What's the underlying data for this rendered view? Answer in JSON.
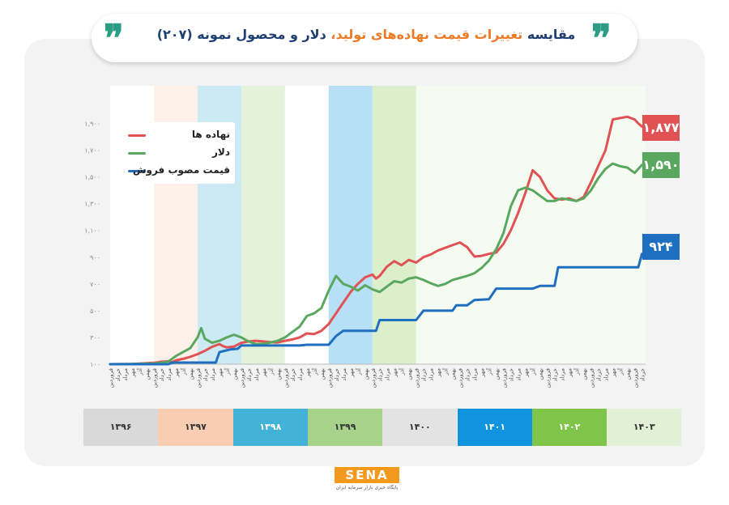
{
  "header": {
    "title_part1": "مقایسه ",
    "title_highlight": "تغییرات قیمت نهاده‌های تولید،",
    "title_part2": " دلار و محصول نمونه (۲۰۷)",
    "quote_glyph": "❞"
  },
  "colors": {
    "inputs": "#e05254",
    "dollar": "#5aa860",
    "price": "#1f6fc0",
    "title": "#1f3f73",
    "accent": "#ee7a26"
  },
  "legend": {
    "items": [
      {
        "label": "نهاده ها",
        "color": "#e05254"
      },
      {
        "label": "دلار",
        "color": "#5aa860"
      },
      {
        "label": "قیمت مصوب فروش",
        "color": "#1f6fc0"
      }
    ]
  },
  "badges": {
    "inputs": "۱,۸۷۷",
    "dollar": "۱,۵۹۰",
    "price": "۹۲۴"
  },
  "years": [
    {
      "label": "۱۳۹۶",
      "color": "#d9d9d9",
      "text": "#333"
    },
    {
      "label": "۱۳۹۷",
      "color": "#f8cdb2",
      "text": "#333"
    },
    {
      "label": "۱۳۹۸",
      "color": "#43b2d8",
      "text": "#fff"
    },
    {
      "label": "۱۳۹۹",
      "color": "#a6d389",
      "text": "#333"
    },
    {
      "label": "۱۴۰۰",
      "color": "#e3e3e3",
      "text": "#333"
    },
    {
      "label": "۱۴۰۱",
      "color": "#1194e0",
      "text": "#fff"
    },
    {
      "label": "۱۴۰۲",
      "color": "#7fc549",
      "text": "#fff"
    },
    {
      "label": "۱۴۰۳",
      "color": "#e2f1d5",
      "text": "#333"
    }
  ],
  "month_cycle": [
    "فروردین",
    "خرداد",
    "مرداد",
    "مهر",
    "آذر",
    "بهمن"
  ],
  "logo": {
    "name": "SENA",
    "subtitle": "پایگاه خبری بازار سرمایه ایران"
  },
  "chart_data": {
    "type": "line",
    "title": "مقایسه تغییرات قیمت نهاده‌های تولید، دلار و محصول نمونه (۲۰۷)",
    "x_unit": "ماه (۱۳۹۶ تا مرداد ۱۴۰۳)",
    "ylim": [
      100,
      2000
    ],
    "yticks": [
      100,
      300,
      500,
      700,
      900,
      1100,
      1300,
      1500,
      1700,
      1900
    ],
    "ytick_labels": [
      "۱۰۰",
      "۳۰۰",
      "۵۰۰",
      "۷۰۰",
      "۹۰۰",
      "۱,۱۰۰",
      "۱,۳۰۰",
      "۱,۵۰۰",
      "۱,۷۰۰",
      "۱,۹۰۰"
    ],
    "series": [
      {
        "name": "نهاده ها",
        "color": "#e05254",
        "points": [
          [
            0,
            100
          ],
          [
            6,
            102
          ],
          [
            12,
            110
          ],
          [
            14,
            118
          ],
          [
            16,
            122
          ],
          [
            17,
            115
          ],
          [
            18,
            128
          ],
          [
            20,
            140
          ],
          [
            22,
            155
          ],
          [
            24,
            175
          ],
          [
            26,
            200
          ],
          [
            28,
            230
          ],
          [
            30,
            250
          ],
          [
            31,
            235
          ],
          [
            32,
            225
          ],
          [
            34,
            232
          ],
          [
            36,
            260
          ],
          [
            38,
            270
          ],
          [
            40,
            275
          ],
          [
            42,
            270
          ],
          [
            44,
            265
          ],
          [
            46,
            262
          ],
          [
            48,
            275
          ],
          [
            50,
            285
          ],
          [
            52,
            300
          ],
          [
            54,
            330
          ],
          [
            56,
            325
          ],
          [
            58,
            350
          ],
          [
            60,
            400
          ],
          [
            62,
            480
          ],
          [
            64,
            560
          ],
          [
            66,
            640
          ],
          [
            68,
            700
          ],
          [
            70,
            750
          ],
          [
            72,
            770
          ],
          [
            73,
            740
          ],
          [
            74,
            760
          ],
          [
            76,
            830
          ],
          [
            78,
            870
          ],
          [
            80,
            840
          ],
          [
            82,
            880
          ],
          [
            84,
            860
          ],
          [
            86,
            900
          ],
          [
            88,
            920
          ],
          [
            90,
            950
          ],
          [
            92,
            970
          ],
          [
            94,
            990
          ],
          [
            96,
            1010
          ],
          [
            98,
            975
          ],
          [
            100,
            905
          ],
          [
            102,
            910
          ],
          [
            104,
            925
          ],
          [
            106,
            935
          ],
          [
            108,
            1000
          ],
          [
            110,
            1100
          ],
          [
            112,
            1230
          ],
          [
            114,
            1380
          ],
          [
            116,
            1550
          ],
          [
            118,
            1500
          ],
          [
            120,
            1400
          ],
          [
            122,
            1340
          ],
          [
            124,
            1330
          ],
          [
            126,
            1340
          ],
          [
            128,
            1320
          ],
          [
            130,
            1350
          ],
          [
            132,
            1460
          ],
          [
            134,
            1580
          ],
          [
            136,
            1700
          ],
          [
            138,
            1930
          ],
          [
            140,
            1940
          ],
          [
            142,
            1950
          ],
          [
            144,
            1930
          ],
          [
            145,
            1900
          ],
          [
            146,
            1877
          ]
        ]
      },
      {
        "name": "دلار",
        "color": "#5aa860",
        "points": [
          [
            0,
            100
          ],
          [
            6,
            102
          ],
          [
            12,
            105
          ],
          [
            14,
            110
          ],
          [
            16,
            120
          ],
          [
            18,
            160
          ],
          [
            20,
            190
          ],
          [
            22,
            220
          ],
          [
            24,
            300
          ],
          [
            25,
            370
          ],
          [
            26,
            290
          ],
          [
            28,
            260
          ],
          [
            30,
            275
          ],
          [
            32,
            300
          ],
          [
            34,
            320
          ],
          [
            36,
            300
          ],
          [
            38,
            270
          ],
          [
            40,
            250
          ],
          [
            42,
            252
          ],
          [
            44,
            262
          ],
          [
            46,
            275
          ],
          [
            48,
            300
          ],
          [
            50,
            340
          ],
          [
            52,
            380
          ],
          [
            54,
            460
          ],
          [
            56,
            480
          ],
          [
            58,
            520
          ],
          [
            60,
            650
          ],
          [
            62,
            760
          ],
          [
            64,
            700
          ],
          [
            66,
            680
          ],
          [
            68,
            650
          ],
          [
            70,
            690
          ],
          [
            72,
            660
          ],
          [
            74,
            640
          ],
          [
            76,
            680
          ],
          [
            78,
            720
          ],
          [
            80,
            710
          ],
          [
            82,
            740
          ],
          [
            84,
            750
          ],
          [
            86,
            730
          ],
          [
            88,
            705
          ],
          [
            90,
            685
          ],
          [
            92,
            700
          ],
          [
            94,
            730
          ],
          [
            96,
            745
          ],
          [
            98,
            760
          ],
          [
            100,
            780
          ],
          [
            102,
            820
          ],
          [
            104,
            875
          ],
          [
            106,
            960
          ],
          [
            108,
            1080
          ],
          [
            110,
            1280
          ],
          [
            112,
            1400
          ],
          [
            114,
            1420
          ],
          [
            116,
            1400
          ],
          [
            118,
            1360
          ],
          [
            120,
            1320
          ],
          [
            122,
            1320
          ],
          [
            124,
            1340
          ],
          [
            126,
            1330
          ],
          [
            128,
            1320
          ],
          [
            130,
            1340
          ],
          [
            132,
            1400
          ],
          [
            134,
            1490
          ],
          [
            136,
            1560
          ],
          [
            138,
            1600
          ],
          [
            140,
            1580
          ],
          [
            142,
            1570
          ],
          [
            144,
            1530
          ],
          [
            146,
            1590
          ]
        ]
      },
      {
        "name": "قیمت مصوب فروش",
        "color": "#1f6fc0",
        "points": [
          [
            0,
            100
          ],
          [
            16,
            100
          ],
          [
            17,
            110
          ],
          [
            18,
            112
          ],
          [
            29,
            112
          ],
          [
            30,
            190
          ],
          [
            33,
            210
          ],
          [
            35,
            215
          ],
          [
            36,
            240
          ],
          [
            52,
            240
          ],
          [
            54,
            245
          ],
          [
            60,
            245
          ],
          [
            62,
            310
          ],
          [
            64,
            350
          ],
          [
            73,
            350
          ],
          [
            74,
            430
          ],
          [
            84,
            430
          ],
          [
            86,
            500
          ],
          [
            94,
            500
          ],
          [
            95,
            540
          ],
          [
            98,
            540
          ],
          [
            100,
            580
          ],
          [
            104,
            585
          ],
          [
            106,
            665
          ],
          [
            116,
            665
          ],
          [
            118,
            685
          ],
          [
            122,
            685
          ],
          [
            123,
            825
          ],
          [
            142,
            825
          ],
          [
            145,
            825
          ],
          [
            146,
            924
          ]
        ]
      }
    ],
    "annotations": [
      {
        "label": "۱,۸۷۷",
        "series": "نهاده ها"
      },
      {
        "label": "۱,۵۹۰",
        "series": "دلار"
      },
      {
        "label": "۹۲۴",
        "series": "قیمت مصوب فروش"
      }
    ]
  }
}
